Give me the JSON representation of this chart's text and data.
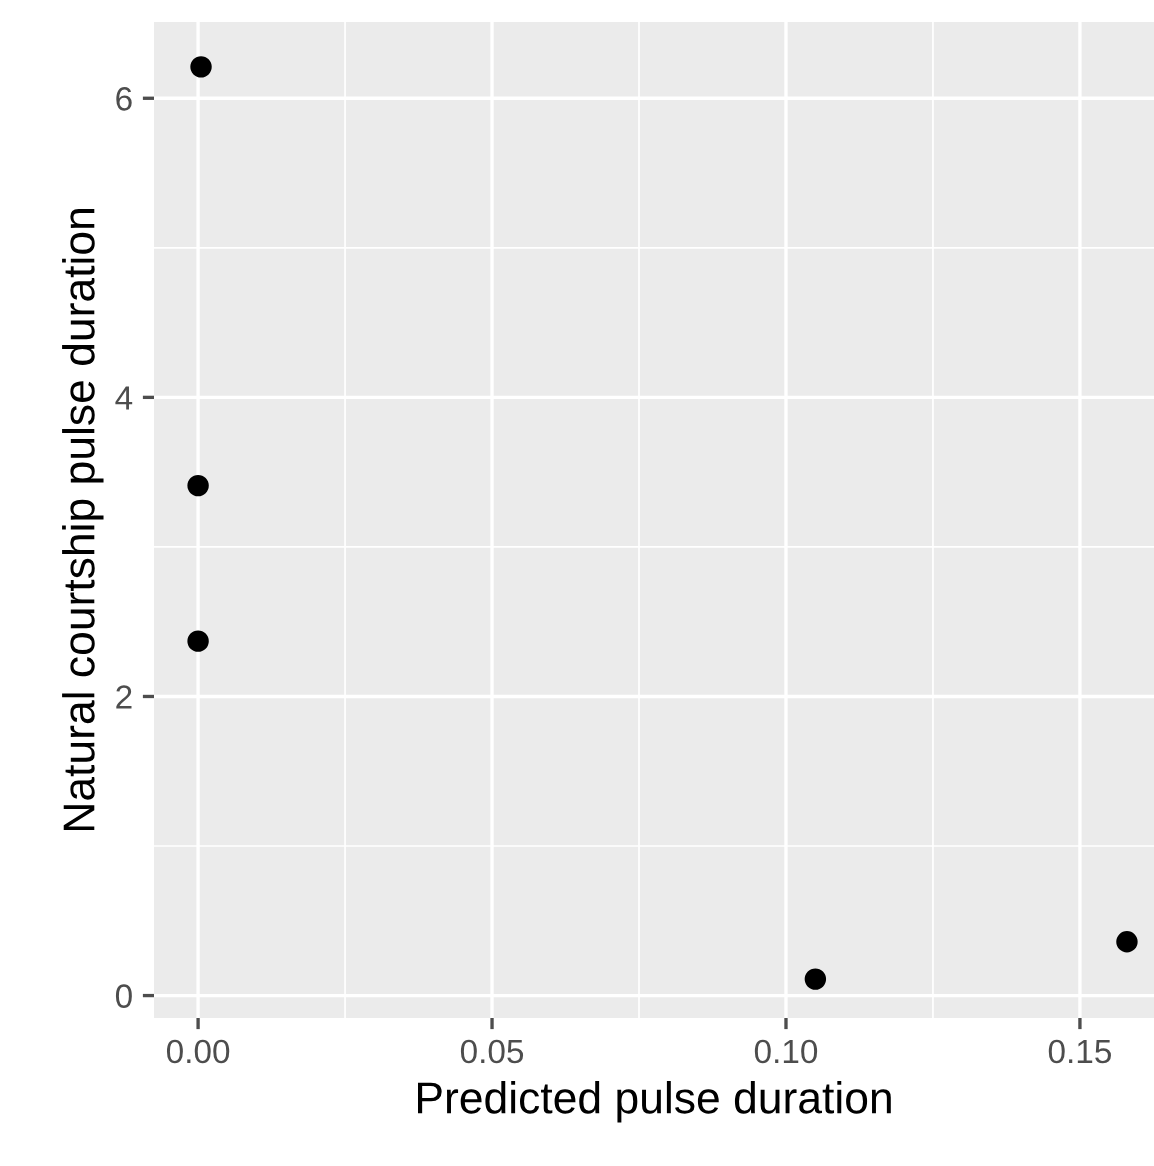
{
  "chart_data": {
    "type": "scatter",
    "xlabel": "Predicted pulse duration",
    "ylabel": "Natural courtship pulse duration",
    "x": [
      0.0005,
      0.0,
      0.0,
      0.105,
      0.158
    ],
    "series": [
      {
        "color": "#000000",
        "values": [
          6.21,
          3.41,
          2.37,
          0.11,
          0.36
        ]
      }
    ],
    "xlim": [
      -0.0075,
      0.1626
    ],
    "ylim": [
      -0.15,
      6.51
    ],
    "xticks": [
      {
        "value": 0.0,
        "label": "0.00"
      },
      {
        "value": 0.05,
        "label": "0.05"
      },
      {
        "value": 0.1,
        "label": "0.10"
      },
      {
        "value": 0.15,
        "label": "0.15"
      }
    ],
    "yticks": [
      0,
      2,
      4,
      6
    ],
    "grid": true,
    "marker": "circle"
  }
}
